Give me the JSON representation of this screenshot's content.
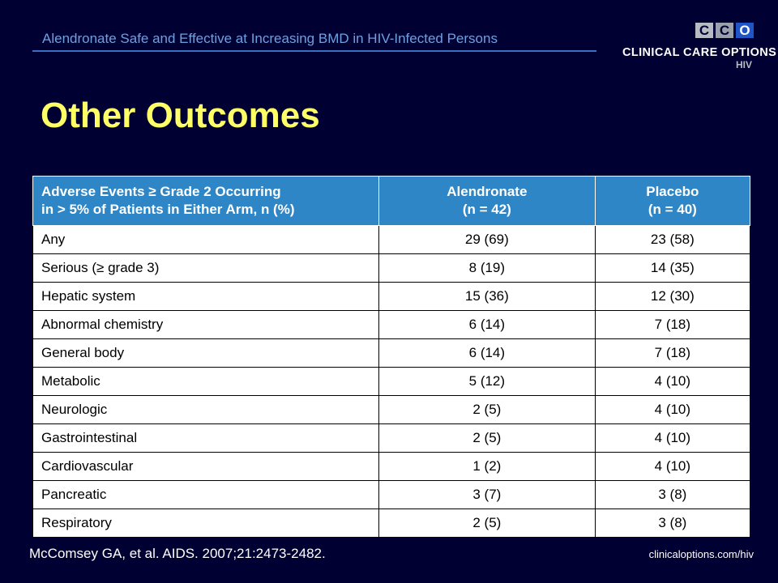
{
  "header": {
    "title": "Alendronate Safe and Effective at Increasing BMD in HIV-Infected Persons",
    "logo": {
      "letters": [
        "C",
        "C",
        "O"
      ],
      "name": "CLINICAL CARE OPTIONS",
      "sub": "HIV",
      "colors": {
        "light": "#b7bcc4",
        "mid": "#9aa1ab",
        "blue": "#1f55c6"
      }
    }
  },
  "slide_title": "Other Outcomes",
  "table": {
    "headers": [
      {
        "line1": "Adverse Events ≥ Grade 2 Occurring",
        "line2": "in > 5% of Patients in Either Arm, n (%)"
      },
      {
        "line1": "Alendronate",
        "line2": "(n = 42)"
      },
      {
        "line1": "Placebo",
        "line2": "(n = 40)"
      }
    ],
    "rows": [
      [
        "Any",
        "29 (69)",
        "23 (58)"
      ],
      [
        "Serious (≥ grade 3)",
        "8 (19)",
        "14 (35)"
      ],
      [
        "Hepatic system",
        "15 (36)",
        "12 (30)"
      ],
      [
        "Abnormal chemistry",
        "6 (14)",
        "7 (18)"
      ],
      [
        "General body",
        "6 (14)",
        "7 (18)"
      ],
      [
        "Metabolic",
        "5 (12)",
        "4 (10)"
      ],
      [
        "Neurologic",
        "2 (5)",
        "4 (10)"
      ],
      [
        "Gastrointestinal",
        "2 (5)",
        "4 (10)"
      ],
      [
        "Cardiovascular",
        "1 (2)",
        "4 (10)"
      ],
      [
        "Pancreatic",
        "3 (7)",
        "3 (8)"
      ],
      [
        "Respiratory",
        "2 (5)",
        "3 (8)"
      ]
    ]
  },
  "footer": {
    "citation": "McComsey GA, et al. AIDS. 2007;21:2473-2482.",
    "url": "clinicaloptions.com/hiv"
  },
  "colors": {
    "background": "#000033",
    "title": "#ffff66",
    "header_text": "#6fa0e0",
    "table_header": "#2f86c6"
  }
}
